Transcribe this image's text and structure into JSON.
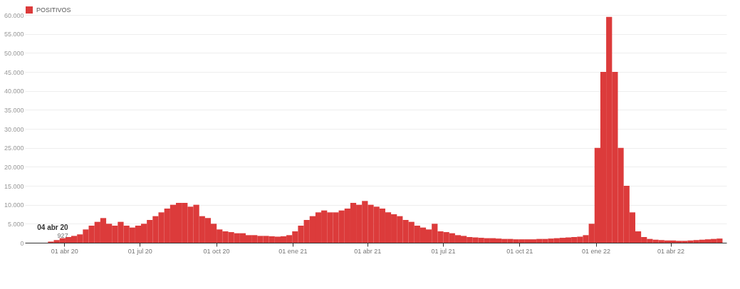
{
  "chart_data": {
    "type": "bar",
    "x": [
      "2020-02-24",
      "2020-03-02",
      "2020-03-09",
      "2020-03-16",
      "2020-03-23",
      "2020-03-30",
      "2020-04-06",
      "2020-04-13",
      "2020-04-20",
      "2020-04-27",
      "2020-05-04",
      "2020-05-11",
      "2020-05-18",
      "2020-05-25",
      "2020-06-01",
      "2020-06-08",
      "2020-06-15",
      "2020-06-22",
      "2020-06-29",
      "2020-07-06",
      "2020-07-13",
      "2020-07-20",
      "2020-07-27",
      "2020-08-03",
      "2020-08-10",
      "2020-08-17",
      "2020-08-24",
      "2020-08-31",
      "2020-09-07",
      "2020-09-14",
      "2020-09-21",
      "2020-09-28",
      "2020-10-05",
      "2020-10-12",
      "2020-10-19",
      "2020-10-26",
      "2020-11-02",
      "2020-11-09",
      "2020-11-16",
      "2020-11-23",
      "2020-11-30",
      "2020-12-07",
      "2020-12-14",
      "2020-12-21",
      "2020-12-28",
      "2021-01-04",
      "2021-01-11",
      "2021-01-18",
      "2021-01-25",
      "2021-02-01",
      "2021-02-08",
      "2021-02-15",
      "2021-02-22",
      "2021-03-01",
      "2021-03-08",
      "2021-03-15",
      "2021-03-22",
      "2021-03-29",
      "2021-04-05",
      "2021-04-12",
      "2021-04-19",
      "2021-04-26",
      "2021-05-03",
      "2021-05-10",
      "2021-05-17",
      "2021-05-24",
      "2021-05-31",
      "2021-06-07",
      "2021-06-14",
      "2021-06-21",
      "2021-06-28",
      "2021-07-05",
      "2021-07-12",
      "2021-07-19",
      "2021-07-26",
      "2021-08-02",
      "2021-08-09",
      "2021-08-16",
      "2021-08-23",
      "2021-08-30",
      "2021-09-06",
      "2021-09-13",
      "2021-09-20",
      "2021-09-27",
      "2021-10-04",
      "2021-10-11",
      "2021-10-18",
      "2021-10-25",
      "2021-11-01",
      "2021-11-08",
      "2021-11-15",
      "2021-11-22",
      "2021-11-29",
      "2021-12-06",
      "2021-12-13",
      "2021-12-20",
      "2021-12-27",
      "2022-01-03",
      "2022-01-10",
      "2022-01-17",
      "2022-01-24",
      "2022-01-31",
      "2022-02-07",
      "2022-02-14",
      "2022-02-21",
      "2022-02-28",
      "2022-03-07",
      "2022-03-14",
      "2022-03-21",
      "2022-03-28",
      "2022-04-04",
      "2022-04-11",
      "2022-04-18",
      "2022-04-25",
      "2022-05-02",
      "2022-05-09",
      "2022-05-16",
      "2022-05-23",
      "2022-05-30"
    ],
    "series": [
      {
        "name": "POSITIVOS",
        "color": "#dc3b3b",
        "values": [
          0,
          0,
          0,
          300,
          700,
          1200,
          1500,
          1800,
          2200,
          3500,
          4500,
          5500,
          6500,
          5000,
          4500,
          5500,
          4500,
          4000,
          4500,
          5000,
          6000,
          7000,
          8000,
          9000,
          10000,
          10500,
          10500,
          9500,
          10000,
          7000,
          6500,
          5000,
          3500,
          3000,
          2800,
          2500,
          2500,
          2000,
          2000,
          1800,
          1800,
          1700,
          1600,
          1700,
          2000,
          3000,
          4500,
          6000,
          7000,
          8000,
          8500,
          8000,
          8000,
          8500,
          9000,
          10500,
          10000,
          11000,
          10000,
          9500,
          9000,
          8000,
          7500,
          7000,
          6000,
          5500,
          4500,
          4000,
          3500,
          5000,
          3000,
          2800,
          2500,
          2000,
          1800,
          1500,
          1400,
          1300,
          1200,
          1200,
          1100,
          1000,
          1000,
          900,
          900,
          900,
          900,
          1000,
          1000,
          1100,
          1200,
          1300,
          1400,
          1500,
          1600,
          2000,
          5000,
          25000,
          45000,
          59500,
          45000,
          25000,
          15000,
          8000,
          3000,
          1500,
          1000,
          800,
          700,
          600,
          600,
          500,
          500,
          600,
          700,
          800,
          900,
          1000,
          1100
        ]
      }
    ],
    "xlim": [
      "2020-02-18",
      "2022-06-03"
    ],
    "xticks": [
      {
        "value": "2020-04-01",
        "label": "01 abr 20"
      },
      {
        "value": "2020-07-01",
        "label": "01 jul 20"
      },
      {
        "value": "2020-10-01",
        "label": "01 oct 20"
      },
      {
        "value": "2021-01-01",
        "label": "01 ene 21"
      },
      {
        "value": "2021-04-01",
        "label": "01 abr 21"
      },
      {
        "value": "2021-07-01",
        "label": "01 jul 21"
      },
      {
        "value": "2021-10-01",
        "label": "01 oct 21"
      },
      {
        "value": "2022-01-01",
        "label": "01 ene 22"
      },
      {
        "value": "2022-04-01",
        "label": "01 abr 22"
      }
    ],
    "ylim": [
      0,
      60000
    ],
    "yticks": [
      0,
      {
        "value": 5000,
        "label": "5.000"
      },
      {
        "value": 10000,
        "label": "10.000"
      },
      {
        "value": 15000,
        "label": "15.000"
      },
      {
        "value": 20000,
        "label": "20.000"
      },
      {
        "value": 25000,
        "label": "25.000"
      },
      {
        "value": 30000,
        "label": "30.000"
      },
      {
        "value": 35000,
        "label": "35.000"
      },
      {
        "value": 40000,
        "label": "40.000"
      },
      {
        "value": 45000,
        "label": "45.000"
      },
      {
        "value": 50000,
        "label": "50.000"
      },
      {
        "value": 55000,
        "label": "55.000"
      },
      {
        "value": 60000,
        "label": "60.000"
      }
    ],
    "annotations": [
      {
        "text": "04 abr 20",
        "x": "2020-04-04",
        "y": 927
      },
      {
        "text": "927",
        "x": "2020-04-04",
        "y": 927
      }
    ],
    "grid": "y",
    "legend": "top left"
  }
}
